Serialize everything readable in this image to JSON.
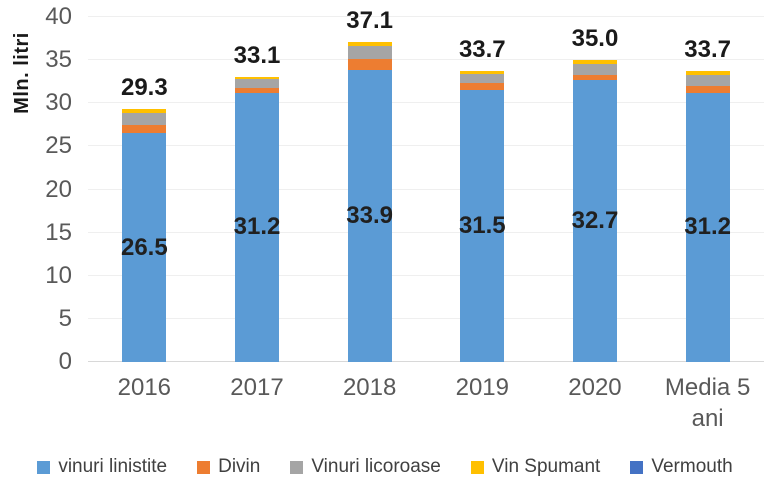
{
  "chart_data": {
    "type": "bar",
    "subtype": "stacked-column",
    "categories": [
      "2016",
      "2017",
      "2018",
      "2019",
      "2020",
      "Media 5 ani"
    ],
    "series": [
      {
        "name": "vinuri linistite",
        "color": "#5B9BD5",
        "values": [
          26.5,
          31.2,
          33.9,
          31.5,
          32.7,
          31.2
        ]
      },
      {
        "name": "Divin",
        "color": "#ED7D31",
        "values": [
          1.0,
          0.6,
          1.2,
          0.8,
          0.6,
          0.8
        ]
      },
      {
        "name": "Vinuri licoroase",
        "color": "#A5A5A5",
        "values": [
          1.4,
          1.0,
          1.5,
          1.1,
          1.3,
          1.3
        ]
      },
      {
        "name": "Vin Spumant",
        "color": "#FFC000",
        "values": [
          0.4,
          0.3,
          0.5,
          0.3,
          0.4,
          0.4
        ]
      },
      {
        "name": "Vermouth",
        "color": "#4472C4",
        "values": [
          0,
          0,
          0,
          0,
          0,
          0
        ]
      }
    ],
    "totals": [
      29.3,
      33.1,
      37.1,
      33.7,
      35.0,
      33.7
    ],
    "total_labels": [
      "29.3",
      "33.1",
      "37.1",
      "33.7",
      "35.0",
      "33.7"
    ],
    "base_segment_labels": [
      "26.5",
      "31.2",
      "33.9",
      "31.5",
      "32.7",
      "31.2"
    ],
    "title": "",
    "xlabel": "",
    "ylabel": "Mln. litri",
    "ylim": [
      0,
      40
    ],
    "yticks": [
      0,
      5,
      10,
      15,
      20,
      25,
      30,
      35,
      40
    ],
    "grid": true,
    "gridline_color": "#efefef",
    "legend_position": "bottom",
    "tick_color": "#595959",
    "label_color": "#1a1a1a"
  }
}
